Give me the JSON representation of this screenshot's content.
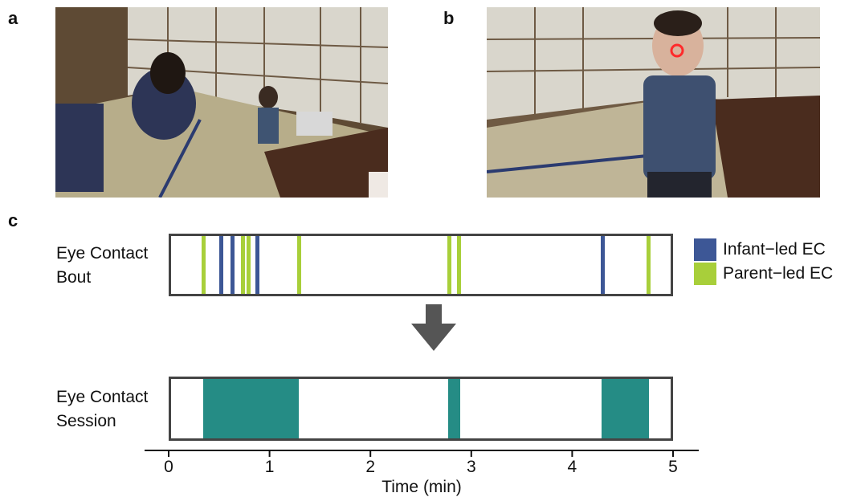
{
  "panels": {
    "a": "a",
    "b": "b",
    "c": "c"
  },
  "photos": {
    "a": {
      "icon": "infant-parent-room-photo"
    },
    "b": {
      "icon": "infant-closeup-gaze-photo",
      "gaze_marker": "red-circle"
    }
  },
  "rows": {
    "bout": {
      "label_line1": "Eye Contact",
      "label_line2": "Bout"
    },
    "session": {
      "label_line1": "Eye Contact",
      "label_line2": "Session"
    }
  },
  "legend": [
    {
      "label": "Infant−led EC",
      "color": "#3d5796"
    },
    {
      "label": "Parent−led EC",
      "color": "#a8cf3a"
    }
  ],
  "arrow": {
    "icon": "down-arrow-icon",
    "color": "#555555"
  },
  "session_color": "#258c85",
  "chart_data": {
    "type": "timeline",
    "xlabel": "Time (min)",
    "xlim": [
      0,
      5
    ],
    "xticks": [
      "0",
      "1",
      "2",
      "3",
      "4",
      "5"
    ],
    "bouts": [
      {
        "t": 0.35,
        "type": "Parent−led EC"
      },
      {
        "t": 0.52,
        "type": "Infant−led EC"
      },
      {
        "t": 0.63,
        "type": "Infant−led EC"
      },
      {
        "t": 0.74,
        "type": "Parent−led EC"
      },
      {
        "t": 0.79,
        "type": "Parent−led EC"
      },
      {
        "t": 0.88,
        "type": "Infant−led EC"
      },
      {
        "t": 1.29,
        "type": "Parent−led EC"
      },
      {
        "t": 2.78,
        "type": "Parent−led EC"
      },
      {
        "t": 2.88,
        "type": "Parent−led EC"
      },
      {
        "t": 4.3,
        "type": "Infant−led EC"
      },
      {
        "t": 4.76,
        "type": "Parent−led EC"
      }
    ],
    "sessions": [
      {
        "start": 0.34,
        "end": 1.29
      },
      {
        "start": 2.77,
        "end": 2.89
      },
      {
        "start": 4.29,
        "end": 4.76
      }
    ]
  }
}
